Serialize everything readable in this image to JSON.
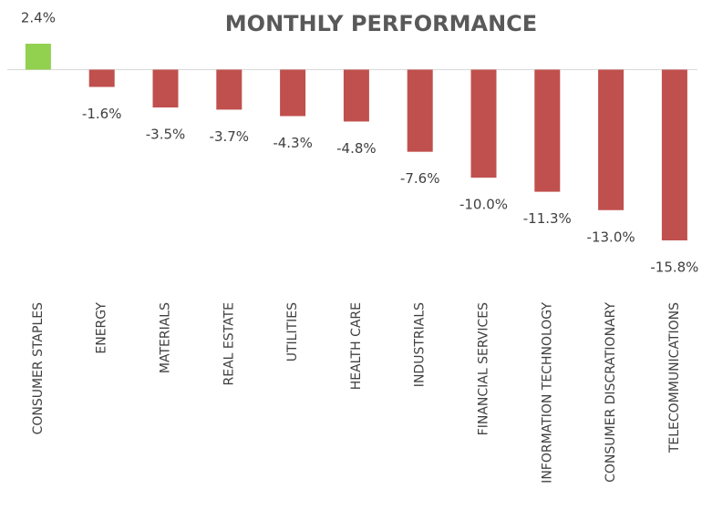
{
  "chart_data": {
    "type": "bar",
    "title": "MONTHLY PERFORMANCE",
    "categories": [
      "CONSUMER STAPLES",
      "ENERGY",
      "MATERIALS",
      "REAL ESTATE",
      "UTILITIES",
      "HEALTH CARE",
      "INDUSTRIALS",
      "FINANCIAL SERVICES",
      "INFORMATION TECHNOLOGY",
      "CONSUMER DISCRATIONARY",
      "TELECOMMUNICATIONS"
    ],
    "values": [
      2.4,
      -1.6,
      -3.5,
      -3.7,
      -4.3,
      -4.8,
      -7.6,
      -10.0,
      -11.3,
      -13.0,
      -15.8
    ],
    "value_labels": [
      "2.4%",
      "-1.6%",
      "-3.5%",
      "-3.7%",
      "-4.3%",
      "-4.8%",
      "-7.6%",
      "-10.0%",
      "-11.3%",
      "-13.0%",
      "-15.8%"
    ],
    "colors": {
      "positive": "#92d050",
      "negative": "#c0504d"
    }
  }
}
